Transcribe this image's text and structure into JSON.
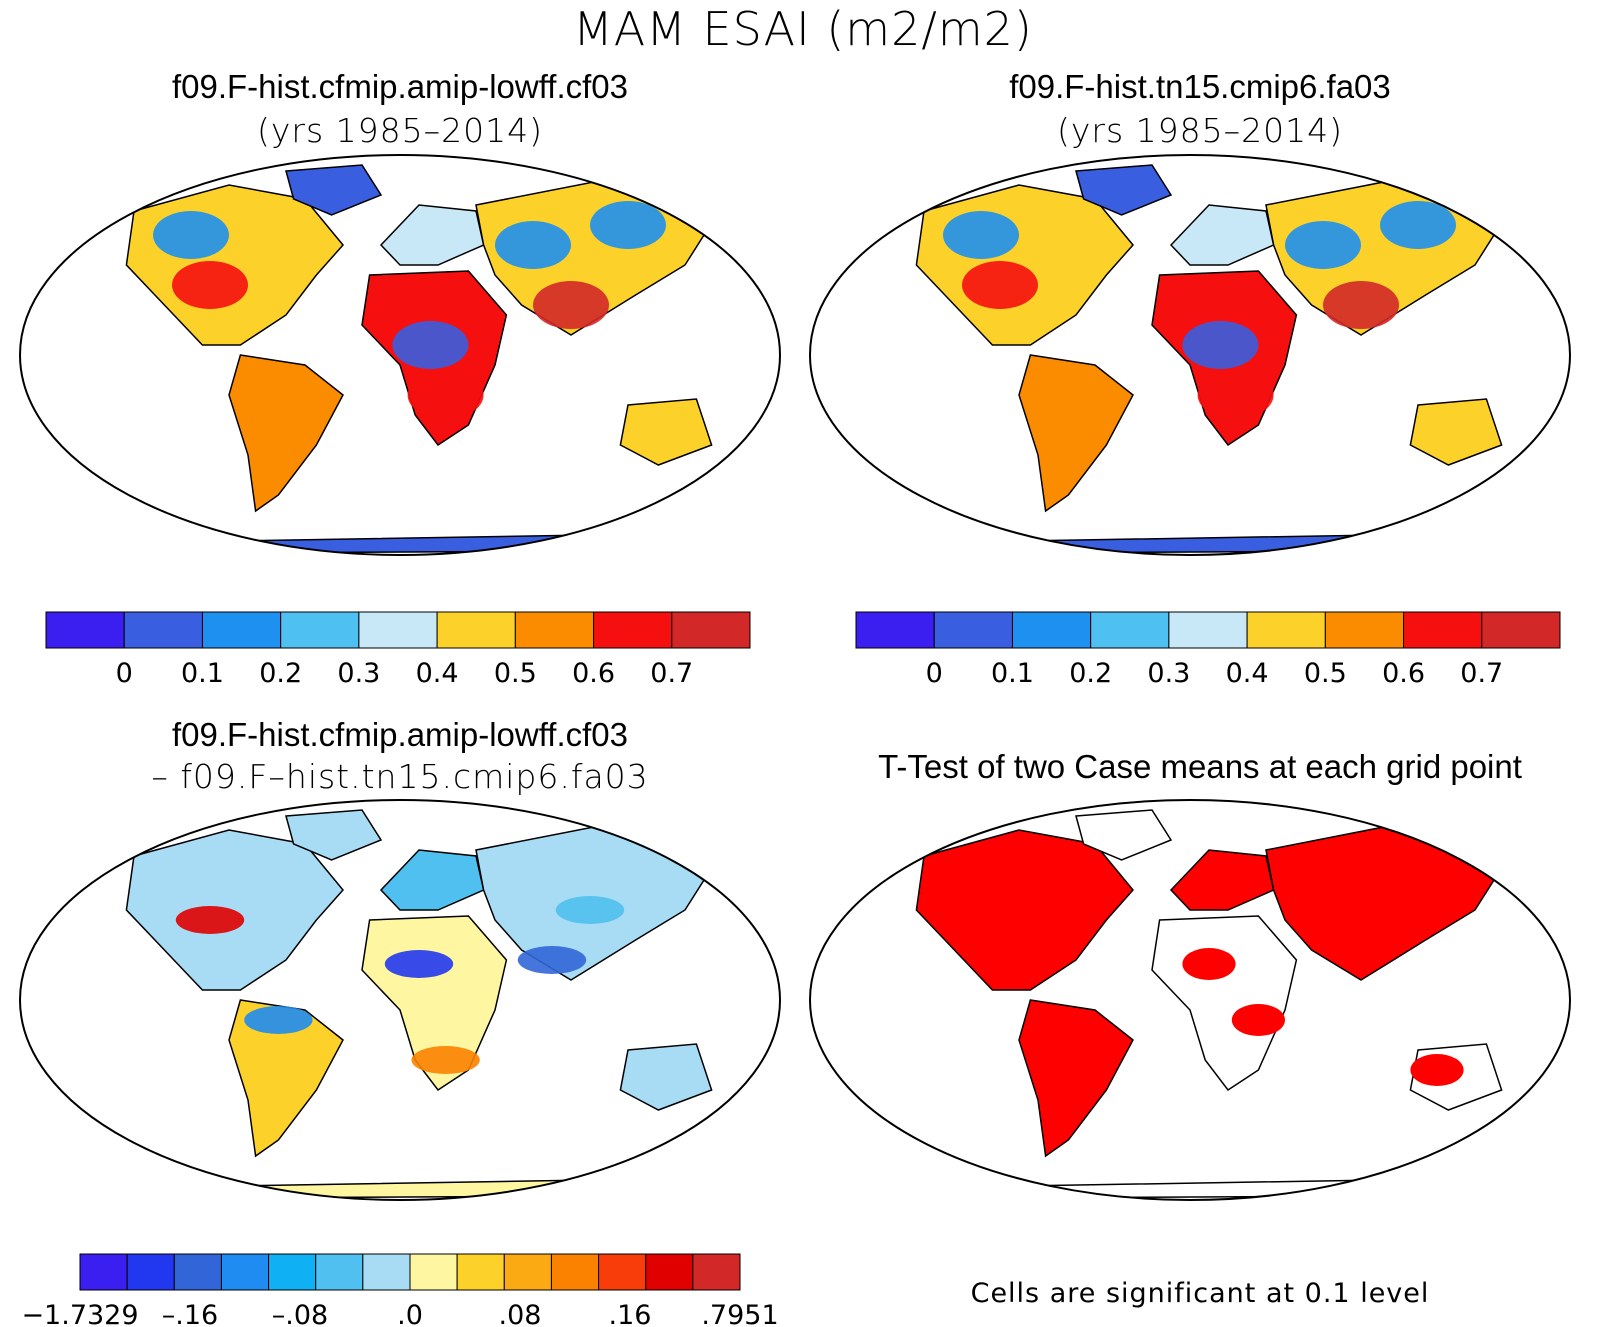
{
  "figure": {
    "title": "MAM ESAI (m2/m2)"
  },
  "panels": [
    {
      "id": "case1",
      "title": "f09.F-hist.cfmip.amip-lowff.cf03",
      "subtitle": "(yrs 1985–2014)"
    },
    {
      "id": "case2",
      "title": "f09.F-hist.tn15.cmip6.fa03",
      "subtitle": "(yrs 1985–2014)"
    },
    {
      "id": "diff",
      "title": "f09.F-hist.cfmip.amip-lowff.cf03",
      "subtitle": "– f09.F–hist.tn15.cmip6.fa03"
    },
    {
      "id": "ttest",
      "title": "T-Test of two Case means at each grid point",
      "note": "Cells are significant at 0.1 level"
    }
  ],
  "colorbars": {
    "case": {
      "colors": [
        "#3b1ef0",
        "#3a5ee0",
        "#1e90f0",
        "#4ec0f2",
        "#c8e8f8",
        "#fcd22a",
        "#fb8c00",
        "#f50f0f",
        "#d22828"
      ],
      "labels": [
        "0",
        "0.1",
        "0.2",
        "0.3",
        "0.4",
        "0.5",
        "0.6",
        "0.7"
      ]
    },
    "diff": {
      "colors": [
        "#3b1ef0",
        "#2238f0",
        "#3266d8",
        "#1e8cf0",
        "#10b0f5",
        "#50c0f0",
        "#a8dcf4",
        "#fef6a0",
        "#fcd22a",
        "#fbaa14",
        "#fb8200",
        "#f83c0a",
        "#e00000",
        "#d22828"
      ],
      "labels": [
        "−1.7329",
        "–.16",
        "–.08",
        ".0",
        ".08",
        ".16",
        ".7951"
      ]
    }
  },
  "colors": {
    "ocean": "#ffffff",
    "significant": "#ff0000",
    "outline": "#000000"
  }
}
